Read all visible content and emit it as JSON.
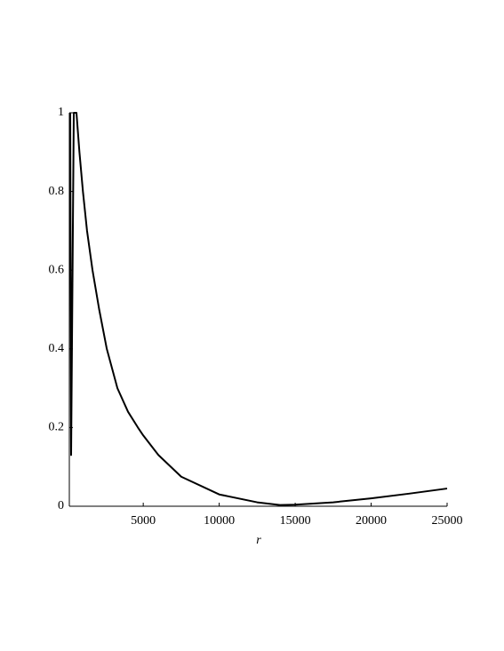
{
  "chart_data": {
    "type": "line",
    "x_label": "r",
    "x": [
      194,
      252,
      428,
      604,
      800,
      1030,
      1300,
      1660,
      2100,
      2600,
      3300,
      4000,
      4650,
      5000,
      6000,
      7500,
      10000,
      12500,
      14000,
      15000,
      17500,
      20000,
      22500,
      25000
    ],
    "series": [
      {
        "color": "#000000",
        "values": [
          1,
          0.13,
          1,
          1,
          0.9,
          0.8,
          0.7,
          0.6,
          0.5,
          0.4,
          0.3,
          0.24,
          0.2,
          0.18,
          0.13,
          0.075,
          0.03,
          0.01,
          0.003,
          0.004,
          0.01,
          0.02,
          0.032,
          0.045
        ]
      }
    ],
    "xlim": [
      135,
      25000
    ],
    "ylim": [
      0,
      1
    ],
    "xticks": [
      5000,
      10000,
      15000,
      20000,
      25000
    ],
    "yticks": [
      0,
      0.2,
      0.4,
      0.6,
      0.8,
      1
    ],
    "grid": false
  }
}
